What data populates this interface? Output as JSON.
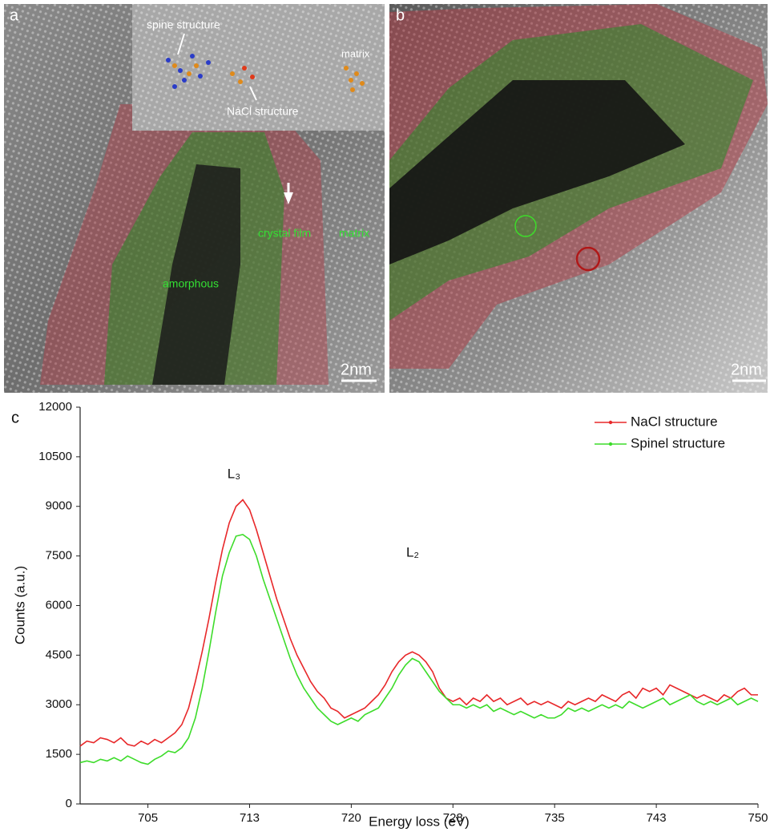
{
  "panels": [
    {
      "label": "a",
      "annotations": [
        "spine structure",
        "NaCl structure",
        "matrix",
        "crystal film",
        "matrix",
        "amorphous"
      ],
      "scale_bar": "2nm"
    },
    {
      "label": "b",
      "scale_bar": "2nm"
    }
  ],
  "chart_data": {
    "type": "line",
    "panel_label": "c",
    "x_label": "Energy loss (eV)",
    "y_label": "Counts (a.u.)",
    "annotations": [
      "L₃",
      "L₂"
    ],
    "xlim": [
      700,
      750
    ],
    "xticks": [
      705,
      {
        "value": 712.5,
        "label": "713"
      },
      720,
      {
        "value": 727.5,
        "label": "728"
      },
      735,
      {
        "value": 742.5,
        "label": "743"
      },
      750
    ],
    "ylim": [
      0,
      12000
    ],
    "yticks": [
      0,
      1500,
      3000,
      4500,
      6000,
      7500,
      9000,
      10500,
      12000
    ],
    "grid": false,
    "legend": "top-right",
    "x": [
      700,
      700.5,
      701,
      701.5,
      702,
      702.5,
      703,
      703.5,
      704,
      704.5,
      705,
      705.5,
      706,
      706.5,
      707,
      707.5,
      708,
      708.5,
      709,
      709.5,
      710,
      710.5,
      711,
      711.5,
      712,
      712.5,
      713,
      713.5,
      714,
      714.5,
      715,
      715.5,
      716,
      716.5,
      717,
      717.5,
      718,
      718.5,
      719,
      719.5,
      720,
      720.5,
      721,
      721.5,
      722,
      722.5,
      723,
      723.5,
      724,
      724.5,
      725,
      725.5,
      726,
      726.5,
      727,
      727.5,
      728,
      728.5,
      729,
      729.5,
      730,
      730.5,
      731,
      731.5,
      732,
      732.5,
      733,
      733.5,
      734,
      734.5,
      735,
      735.5,
      736,
      736.5,
      737,
      737.5,
      738,
      738.5,
      739,
      739.5,
      740,
      740.5,
      741,
      741.5,
      742,
      742.5,
      743,
      743.5,
      744,
      744.5,
      745,
      745.5,
      746,
      746.5,
      747,
      747.5,
      748,
      748.5,
      749,
      749.5,
      750
    ],
    "series": [
      {
        "name": "NaCl structure",
        "color": "#e8282a",
        "values": [
          1750,
          1900,
          1850,
          2000,
          1950,
          1850,
          2000,
          1800,
          1750,
          1900,
          1800,
          1950,
          1850,
          2000,
          2150,
          2400,
          2900,
          3700,
          4600,
          5600,
          6700,
          7700,
          8500,
          9000,
          9200,
          8900,
          8300,
          7600,
          6900,
          6200,
          5600,
          5000,
          4500,
          4100,
          3700,
          3400,
          3200,
          2900,
          2800,
          2600,
          2700,
          2800,
          2900,
          3100,
          3300,
          3600,
          4000,
          4300,
          4500,
          4600,
          4500,
          4300,
          4000,
          3500,
          3200,
          3100,
          3200,
          3000,
          3200,
          3100,
          3300,
          3100,
          3200,
          3000,
          3100,
          3200,
          3000,
          3100,
          3000,
          3100,
          3000,
          2900,
          3100,
          3000,
          3100,
          3200,
          3100,
          3300,
          3200,
          3100,
          3300,
          3400,
          3200,
          3500,
          3400,
          3500,
          3300,
          3600,
          3500,
          3400,
          3300,
          3200,
          3300,
          3200,
          3100,
          3300,
          3200,
          3400,
          3500,
          3300,
          3300
        ]
      },
      {
        "name": "Spinel structure",
        "color": "#3ddc2a",
        "values": [
          1250,
          1300,
          1250,
          1350,
          1300,
          1400,
          1300,
          1450,
          1350,
          1250,
          1200,
          1350,
          1450,
          1600,
          1550,
          1700,
          2000,
          2600,
          3500,
          4600,
          5800,
          6900,
          7600,
          8100,
          8150,
          8000,
          7500,
          6800,
          6200,
          5600,
          5000,
          4400,
          3900,
          3500,
          3200,
          2900,
          2700,
          2500,
          2400,
          2500,
          2600,
          2500,
          2700,
          2800,
          2900,
          3200,
          3500,
          3900,
          4200,
          4400,
          4300,
          4000,
          3700,
          3400,
          3200,
          3000,
          3000,
          2900,
          3000,
          2900,
          3000,
          2800,
          2900,
          2800,
          2700,
          2800,
          2700,
          2600,
          2700,
          2600,
          2600,
          2700,
          2900,
          2800,
          2900,
          2800,
          2900,
          3000,
          2900,
          3000,
          2900,
          3100,
          3000,
          2900,
          3000,
          3100,
          3200,
          3000,
          3100,
          3200,
          3300,
          3100,
          3000,
          3100,
          3000,
          3100,
          3200,
          3000,
          3100,
          3200,
          3100
        ]
      }
    ]
  }
}
